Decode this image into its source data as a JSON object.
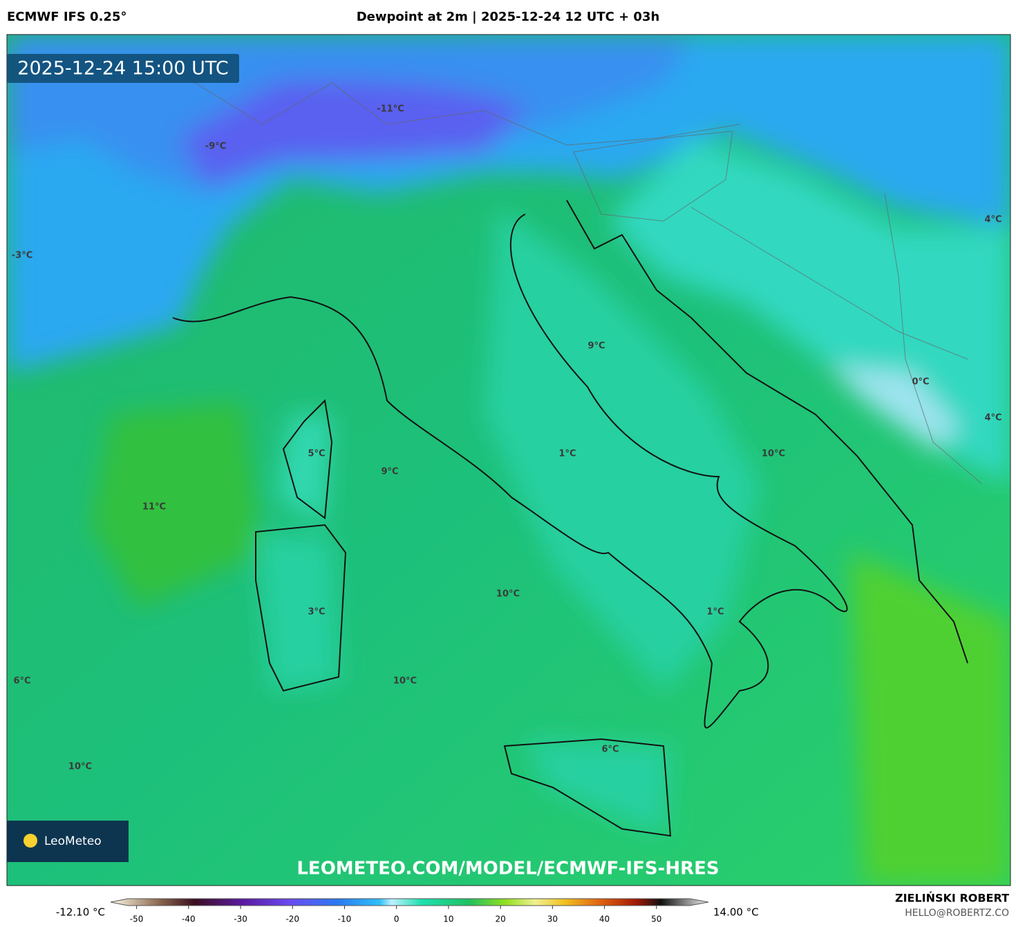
{
  "header": {
    "model": "ECMWF IFS 0.25°",
    "title": "Dewpoint at 2m | 2025-12-24 12 UTC + 03h"
  },
  "map": {
    "valid_time": "2025-12-24 15:00 UTC",
    "watermark": "LEOMETEO.COM/MODEL/ECMWF-IFS-HRES",
    "logo": "LeoMeteo",
    "labels": [
      "-11°C",
      "-9°C",
      "-3°C",
      "4°C",
      "9°C",
      "0°C",
      "4°C",
      "5°C",
      "1°C",
      "10°C",
      "9°C",
      "11°C",
      "10°C",
      "1°C",
      "3°C",
      "6°C",
      "10°C",
      "6°C",
      "10°C"
    ]
  },
  "colorbar": {
    "min_label": "-12.10 °C",
    "max_label": "14.00 °C",
    "range": [
      -55,
      60
    ],
    "ticks": [
      -50,
      -40,
      -30,
      -20,
      -10,
      0,
      10,
      20,
      30,
      40,
      50
    ]
  },
  "footer": {
    "author": "ZIELIŃSKI ROBERT",
    "email": "HELLO@ROBERTZ.CO"
  }
}
